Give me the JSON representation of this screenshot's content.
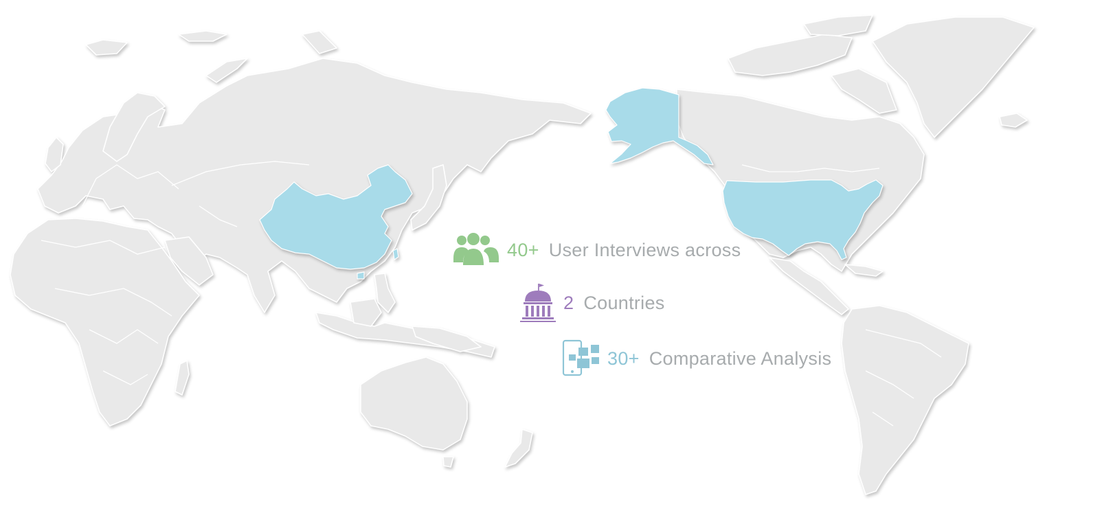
{
  "map": {
    "highlighted_regions": [
      "China",
      "United States",
      "Alaska"
    ],
    "colors": {
      "land": "#e9e9e9",
      "highlight": "#a8dbe9",
      "background": "#ffffff"
    }
  },
  "stats": [
    {
      "icon": "users-group-icon",
      "value": "40+",
      "label": "User Interviews across",
      "color": "#93c98c"
    },
    {
      "icon": "government-building-icon",
      "value": "2",
      "label": "Countries",
      "color": "#9e7cbc"
    },
    {
      "icon": "devices-compare-icon",
      "value": "30+",
      "label": "Comparative Analysis",
      "color": "#8ec5d6"
    }
  ]
}
